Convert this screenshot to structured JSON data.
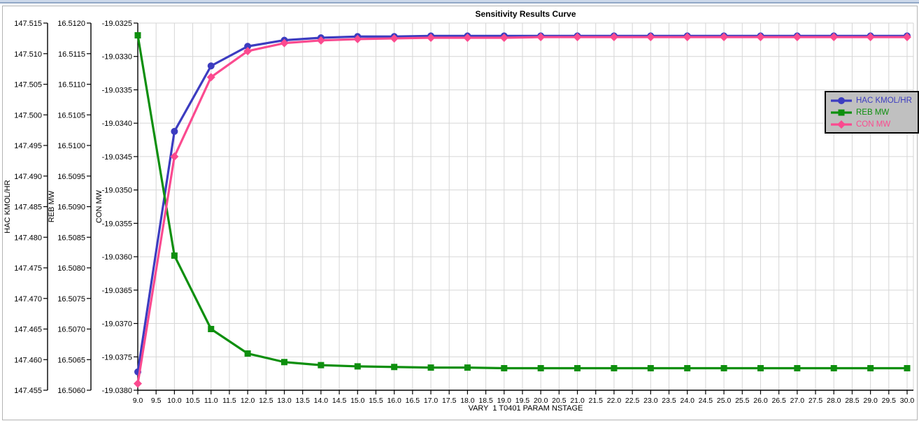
{
  "window": {
    "top_strip_color": "#ccd8ea",
    "top_strip_line_color": "#92a8c6",
    "panel_border_color": "#b3b3b3"
  },
  "chart_data": {
    "type": "line",
    "title": "Sensitivity Results Curve",
    "xlabel": "VARY  1 T0401 PARAM NSTAGE",
    "grid": true,
    "legend_position": "right",
    "legend_bg": "#c0c0c0",
    "gridline_color": "#d6d6d6",
    "x_range": [
      9,
      30
    ],
    "x_gridline_step": 0.5,
    "x": [
      9,
      10,
      11,
      12,
      13,
      14,
      15,
      16,
      17,
      18,
      19,
      20,
      21,
      22,
      23,
      24,
      25,
      26,
      27,
      28,
      29,
      30
    ],
    "x_ticks": [
      "9.0",
      "9.5",
      "10.0",
      "10.5",
      "11.0",
      "11.5",
      "12.0",
      "12.5",
      "13.0",
      "13.5",
      "14.0",
      "14.5",
      "15.0",
      "15.5",
      "16.0",
      "16.5",
      "17.0",
      "17.5",
      "18.0",
      "18.5",
      "19.0",
      "19.5",
      "20.0",
      "20.5",
      "21.0",
      "21.5",
      "22.0",
      "22.5",
      "23.0",
      "23.5",
      "24.0",
      "24.5",
      "25.0",
      "25.5",
      "26.0",
      "26.5",
      "27.0",
      "27.5",
      "28.0",
      "28.5",
      "29.0",
      "29.5",
      "30.0"
    ],
    "y_axes": [
      {
        "label": "HAC KMOL/HR",
        "range": [
          147.455,
          147.515
        ],
        "ticks": [
          "147.515",
          "147.510",
          "147.505",
          "147.500",
          "147.495",
          "147.490",
          "147.485",
          "147.480",
          "147.475",
          "147.470",
          "147.465",
          "147.460",
          "147.455"
        ]
      },
      {
        "label": "REB MW",
        "range": [
          16.506,
          16.512
        ],
        "ticks": [
          "16.5120",
          "16.5115",
          "16.5110",
          "16.5105",
          "16.5100",
          "16.5095",
          "16.5090",
          "16.5085",
          "16.5080",
          "16.5075",
          "16.5070",
          "16.5065",
          "16.5060"
        ]
      },
      {
        "label": "CON MW",
        "range": [
          -19.038,
          -19.0325
        ],
        "ticks": [
          "-19.0325",
          "-19.0330",
          "-19.0335",
          "-19.0340",
          "-19.0345",
          "-19.0350",
          "-19.0355",
          "-19.0360",
          "-19.0365",
          "-19.0370",
          "-19.0375",
          "-19.0380"
        ]
      }
    ],
    "series": [
      {
        "name": "HAC KMOL/HR",
        "axis": 0,
        "color": "#3c3cc0",
        "marker": "circle",
        "values": [
          147.458,
          147.4973,
          147.508,
          147.5112,
          147.5122,
          147.5126,
          147.5128,
          147.5128,
          147.5129,
          147.5129,
          147.5129,
          147.5129,
          147.5129,
          147.5129,
          147.5129,
          147.5129,
          147.5129,
          147.5129,
          147.5129,
          147.5129,
          147.5129,
          147.5129
        ]
      },
      {
        "name": "REB MW",
        "axis": 1,
        "color": "#0e8f0e",
        "marker": "square",
        "values": [
          16.5118,
          16.5082,
          16.507,
          16.5066,
          16.50646,
          16.50641,
          16.50639,
          16.50638,
          16.50637,
          16.50637,
          16.50636,
          16.50636,
          16.50636,
          16.50636,
          16.50636,
          16.50636,
          16.50636,
          16.50636,
          16.50636,
          16.50636,
          16.50636,
          16.50636
        ]
      },
      {
        "name": "CON MW",
        "axis": 2,
        "color": "#fb4a8f",
        "marker": "diamond",
        "values": [
          -19.0379,
          -19.0345,
          -19.03331,
          -19.03292,
          -19.0328,
          -19.03276,
          -19.03274,
          -19.03273,
          -19.03272,
          -19.03272,
          -19.03272,
          -19.03271,
          -19.03271,
          -19.03271,
          -19.03271,
          -19.03271,
          -19.03271,
          -19.03271,
          -19.03271,
          -19.03271,
          -19.03271,
          -19.03271
        ]
      }
    ]
  }
}
